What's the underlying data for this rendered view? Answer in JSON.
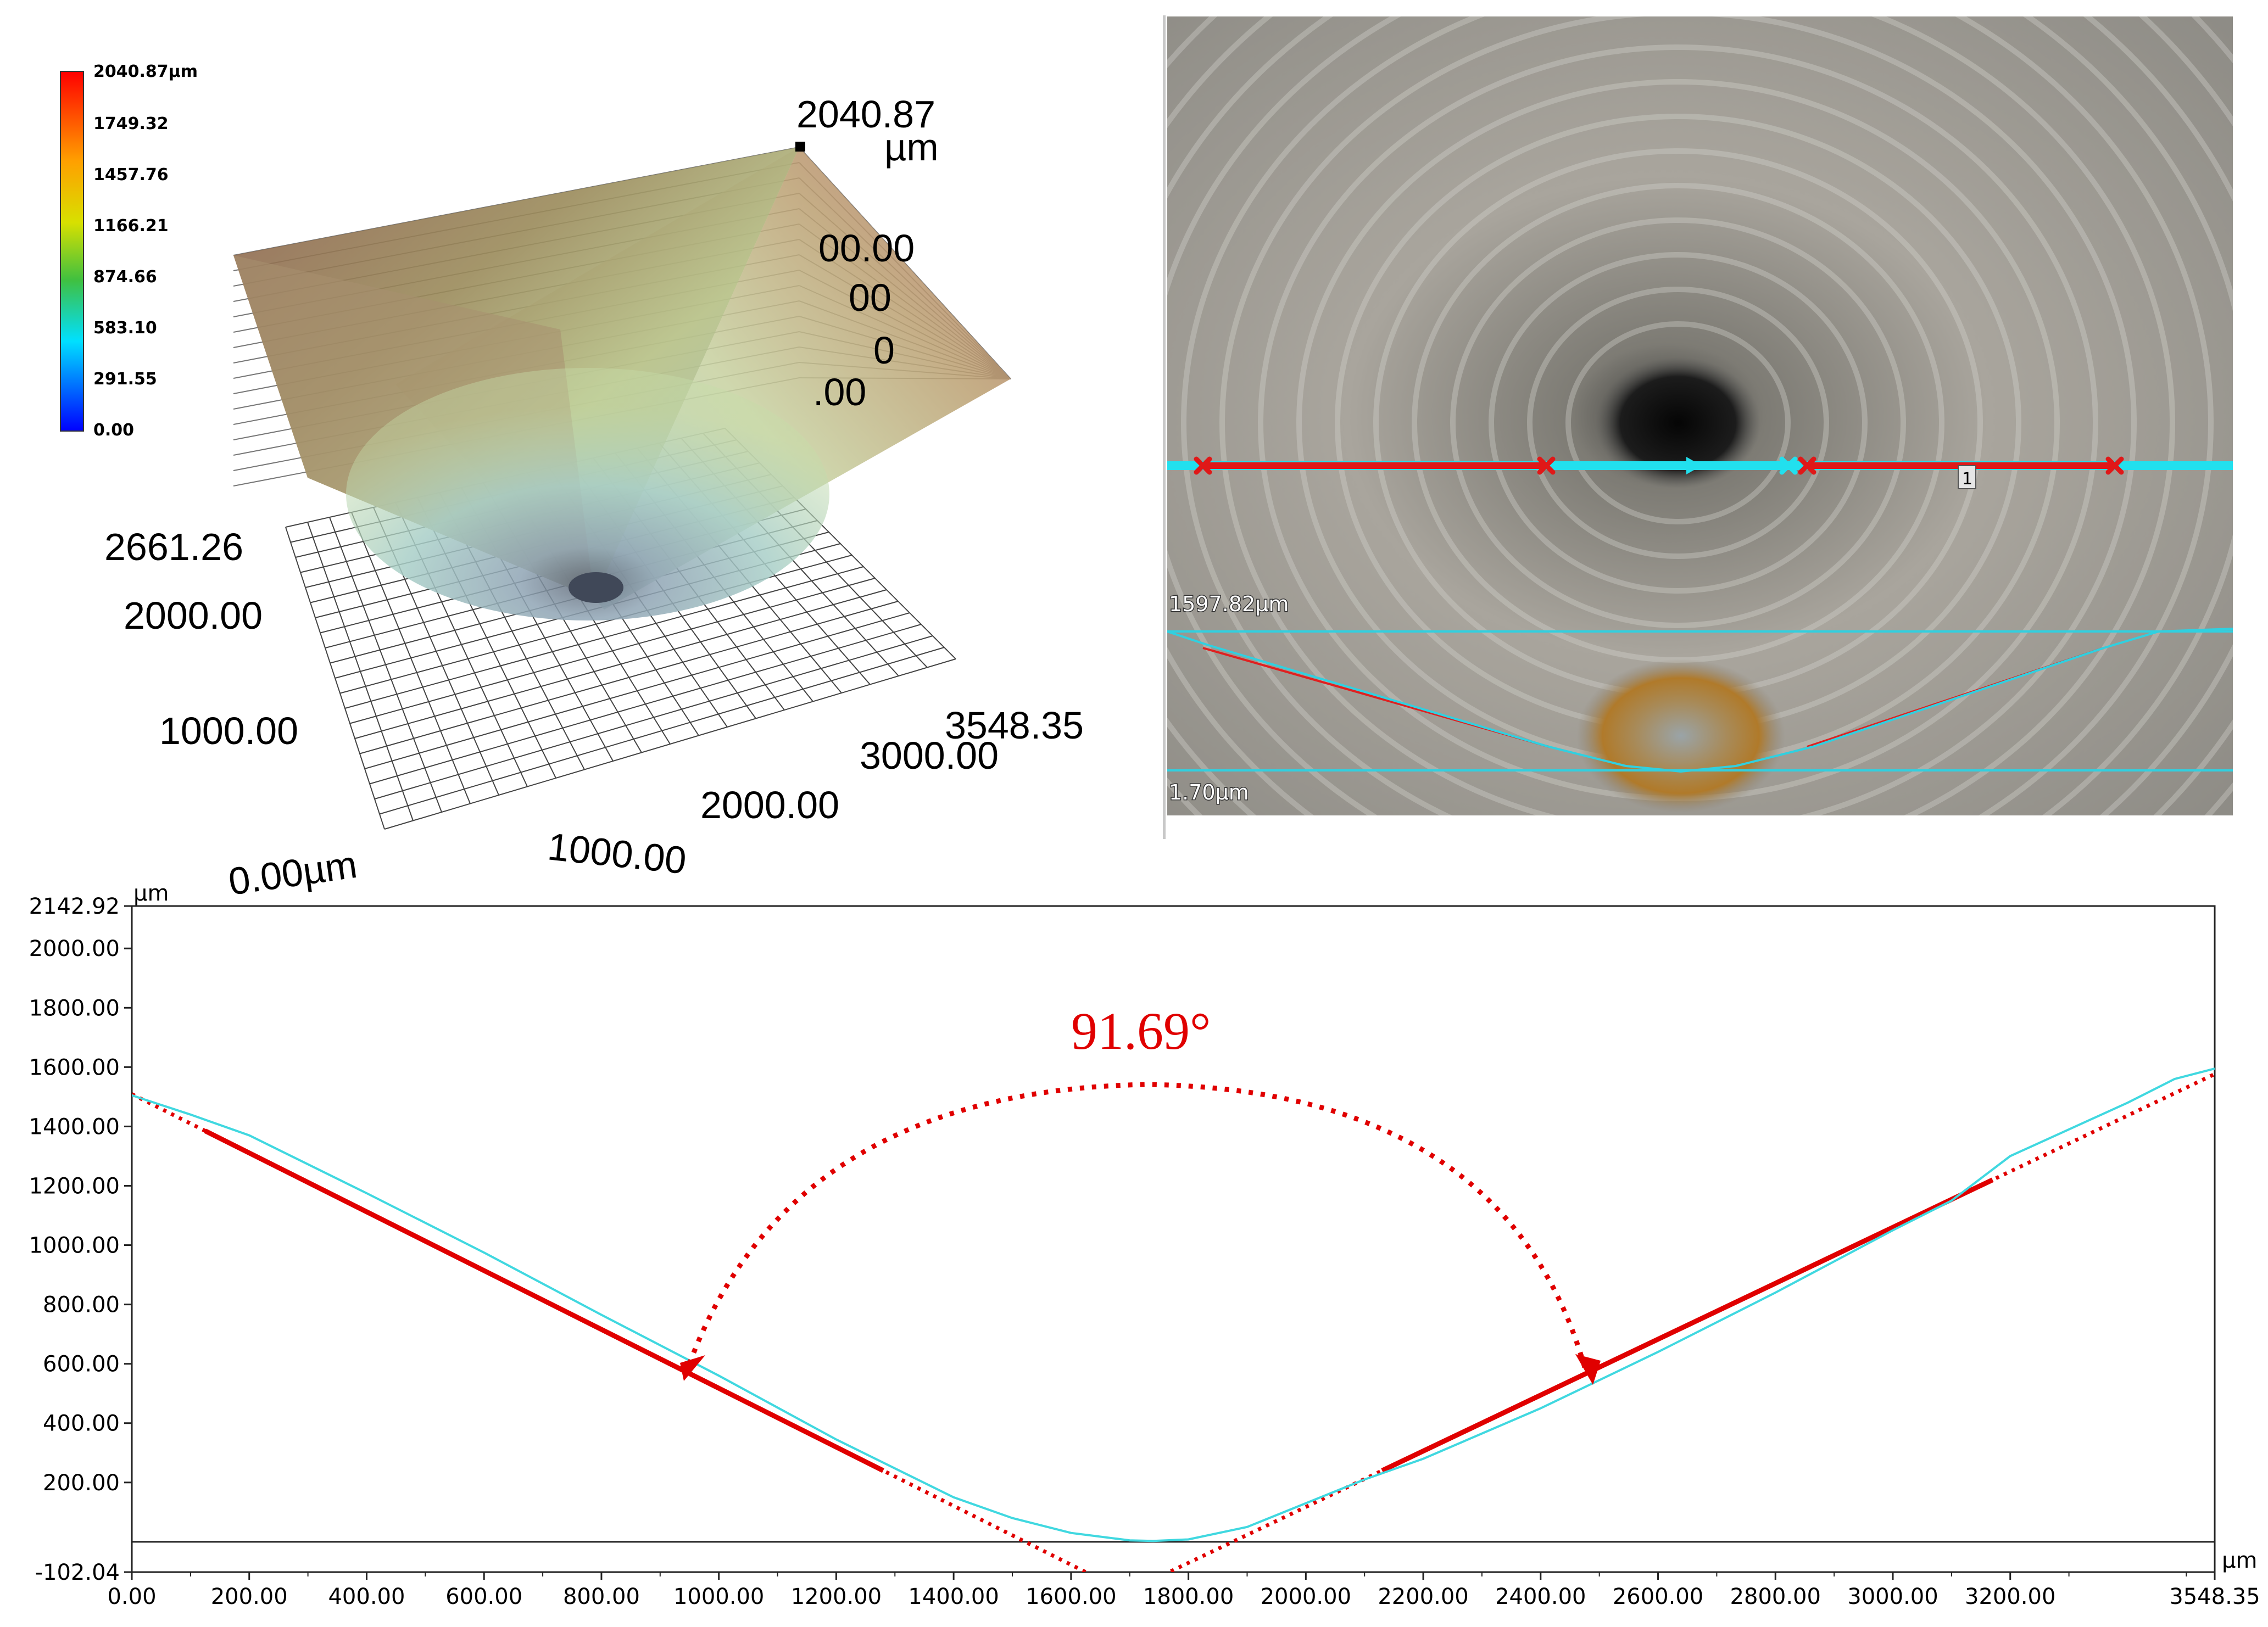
{
  "colorbar": {
    "labels": [
      "2040.87µm",
      "1749.32",
      "1457.76",
      "1166.21",
      "874.66",
      "583.10",
      "291.55",
      "0.00"
    ]
  },
  "surface3d": {
    "peak_label": "2040.87",
    "peak_unit": "µm",
    "y_max_label": "2661.26",
    "y_labels": [
      "2000.00",
      "1000.00"
    ],
    "origin_label": "0.00µm",
    "x_labels": [
      "1000.00",
      "2000.00",
      "3000.00"
    ],
    "x_max_label": "3548.35",
    "z_labels_partial": [
      "00.00",
      "00",
      "0",
      ".00"
    ]
  },
  "photo": {
    "marker_label": "1",
    "upper_level_label": "1597.82µm",
    "lower_level_label": "1.70µm"
  },
  "chart_data": {
    "type": "line",
    "title": "",
    "xlabel": "µm",
    "ylabel": "µm",
    "xlim": [
      0.0,
      3548.35
    ],
    "ylim": [
      -102.04,
      2142.92
    ],
    "x_ticks": [
      "0.00",
      "200.00",
      "400.00",
      "600.00",
      "800.00",
      "1000.00",
      "1200.00",
      "1400.00",
      "1600.00",
      "1800.00",
      "2000.00",
      "2200.00",
      "2400.00",
      "2600.00",
      "2800.00",
      "3000.00",
      "3200.00",
      "3548.35"
    ],
    "y_ticks": [
      "2142.92",
      "2000.00",
      "1800.00",
      "1600.00",
      "1400.00",
      "1200.00",
      "1000.00",
      "800.00",
      "600.00",
      "400.00",
      "200.00",
      "-102.04"
    ],
    "annotation": "91.69°",
    "series": [
      {
        "color": "#40d8e0",
        "x": [
          0,
          100,
          200,
          400,
          600,
          800,
          1000,
          1200,
          1400,
          1500,
          1600,
          1700,
          1740,
          1800,
          1900,
          2000,
          2100,
          2200,
          2400,
          2600,
          2800,
          3000,
          3100,
          3200,
          3300,
          3400,
          3480,
          3548.35
        ],
        "y": [
          1505,
          1440,
          1370,
          1175,
          975,
          765,
          560,
          345,
          150,
          80,
          30,
          5,
          3,
          8,
          50,
          130,
          210,
          280,
          450,
          640,
          840,
          1050,
          1150,
          1300,
          1390,
          1480,
          1560,
          1595
        ]
      }
    ],
    "fit_lines": [
      {
        "color": "#e00000",
        "x": [
          125,
          1280
        ],
        "y": [
          1385,
          240
        ]
      },
      {
        "color": "#e00000",
        "x": [
          2130,
          3170
        ],
        "y": [
          240,
          1220
        ]
      }
    ]
  }
}
